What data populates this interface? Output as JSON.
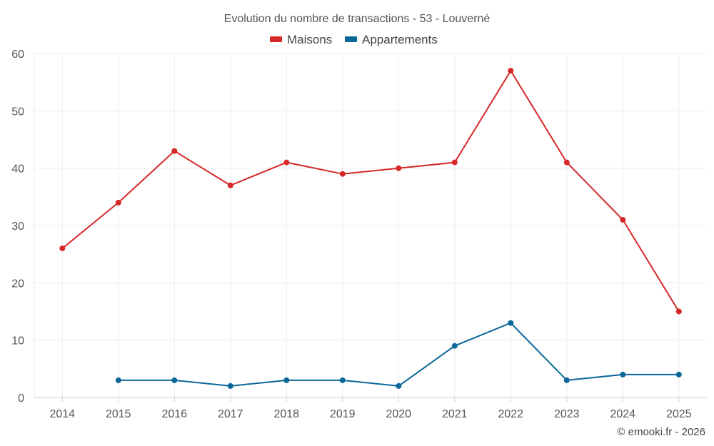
{
  "chart_data": {
    "type": "line",
    "title": "Evolution du nombre de transactions - 53 - Louverné",
    "xlabel": "",
    "ylabel": "",
    "categories": [
      "2014",
      "2015",
      "2016",
      "2017",
      "2018",
      "2019",
      "2020",
      "2021",
      "2022",
      "2023",
      "2024",
      "2025"
    ],
    "ylim": [
      0,
      60
    ],
    "yticks": [
      0,
      10,
      20,
      30,
      40,
      50,
      60
    ],
    "grid": true,
    "legend_position": "top-center",
    "series": [
      {
        "name": "Maisons",
        "color": "#d62828",
        "values": [
          26,
          34,
          43,
          37,
          41,
          39,
          40,
          41,
          57,
          41,
          31,
          15
        ]
      },
      {
        "name": "Appartements",
        "color": "#0a6799",
        "values": [
          null,
          3,
          3,
          2,
          3,
          3,
          2,
          9,
          13,
          3,
          4,
          4
        ]
      }
    ]
  },
  "credit": "© emooki.fr - 2026"
}
